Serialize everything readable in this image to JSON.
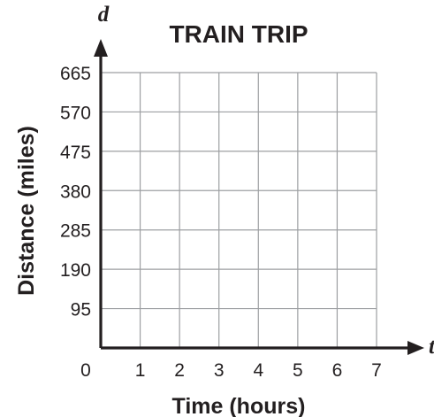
{
  "chart_data": {
    "type": "line",
    "title": "TRAIN TRIP",
    "xlabel": "Time (hours)",
    "ylabel": "Distance (miles)",
    "x_variable": "t",
    "y_variable": "d",
    "origin_label": "0",
    "xlim": [
      0,
      7
    ],
    "ylim": [
      0,
      665
    ],
    "x_ticks": [
      1,
      2,
      3,
      4,
      5,
      6,
      7
    ],
    "y_ticks": [
      95,
      190,
      285,
      380,
      475,
      570,
      665
    ],
    "grid": true,
    "series": []
  },
  "colors": {
    "text": "#231f20",
    "grid": "#9d9fa2",
    "axis": "#231f20"
  }
}
